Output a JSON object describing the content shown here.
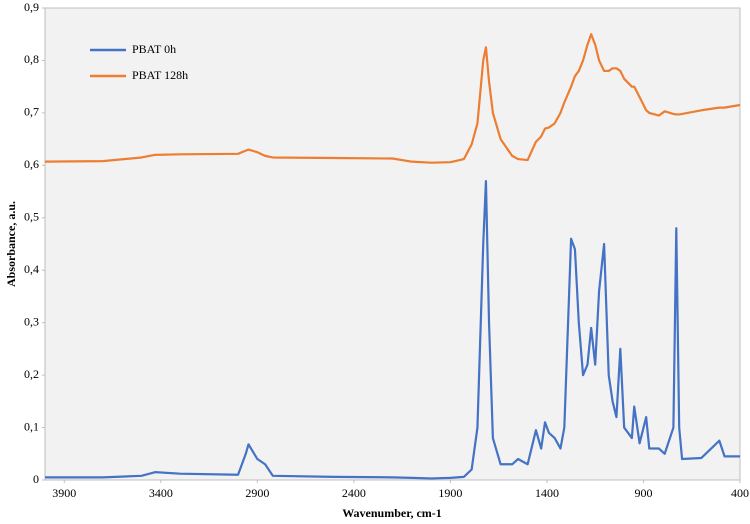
{
  "chart_data": {
    "type": "line",
    "x_label": "Wavenumber, cm-1",
    "y_label": "Absorbance, a.u.",
    "xlim": [
      4000,
      400
    ],
    "ylim": [
      0,
      0.9
    ],
    "xticks": [
      3900,
      3400,
      2900,
      2400,
      1900,
      1400,
      900,
      400
    ],
    "yticks": [
      0,
      {
        "value": 0.1,
        "label": "0,1"
      },
      {
        "value": 0.2,
        "label": "0,2"
      },
      {
        "value": 0.3,
        "label": "0,3"
      },
      {
        "value": 0.4,
        "label": "0,4"
      },
      {
        "value": 0.5,
        "label": "0,5"
      },
      {
        "value": 0.6,
        "label": "0,6"
      },
      {
        "value": 0.7,
        "label": "0,7"
      },
      {
        "value": 0.8,
        "label": "0,8"
      },
      {
        "value": 0.9,
        "label": "0,9"
      }
    ],
    "grid": false,
    "legend": "upper left",
    "x": [
      4000,
      3700,
      3500,
      3430,
      3300,
      3000,
      2960,
      2946,
      2900,
      2860,
      2820,
      2500,
      2200,
      2100,
      2000,
      1900,
      1830,
      1790,
      1760,
      1730,
      1716,
      1700,
      1680,
      1640,
      1580,
      1550,
      1500,
      1457,
      1430,
      1410,
      1390,
      1360,
      1330,
      1310,
      1275,
      1255,
      1235,
      1213,
      1190,
      1171,
      1150,
      1130,
      1104,
      1080,
      1060,
      1040,
      1020,
      1000,
      960,
      948,
      920,
      886,
      870,
      820,
      790,
      745,
      730,
      715,
      700,
      600,
      507,
      480,
      400
    ],
    "series": [
      {
        "name": "PBAT 0h",
        "color": "#4472c4",
        "values": [
          0.005,
          0.005,
          0.008,
          0.015,
          0.012,
          0.01,
          0.05,
          0.068,
          0.04,
          0.03,
          0.008,
          0.006,
          0.005,
          0.004,
          0.003,
          0.004,
          0.006,
          0.02,
          0.1,
          0.45,
          0.57,
          0.3,
          0.08,
          0.03,
          0.03,
          0.04,
          0.03,
          0.095,
          0.06,
          0.11,
          0.09,
          0.08,
          0.06,
          0.1,
          0.46,
          0.44,
          0.3,
          0.2,
          0.22,
          0.29,
          0.22,
          0.36,
          0.45,
          0.2,
          0.15,
          0.12,
          0.25,
          0.1,
          0.08,
          0.14,
          0.07,
          0.12,
          0.06,
          0.06,
          0.05,
          0.1,
          0.48,
          0.1,
          0.04,
          0.042,
          0.075,
          0.045,
          0.045
        ]
      },
      {
        "name": "PBAT 128h",
        "color": "#ed7d31",
        "values": [
          0.607,
          0.608,
          0.615,
          0.62,
          0.621,
          0.622,
          0.628,
          0.63,
          0.625,
          0.618,
          0.615,
          0.614,
          0.613,
          0.607,
          0.605,
          0.606,
          0.612,
          0.64,
          0.68,
          0.8,
          0.825,
          0.76,
          0.7,
          0.65,
          0.618,
          0.612,
          0.61,
          0.645,
          0.655,
          0.67,
          0.672,
          0.68,
          0.7,
          0.72,
          0.75,
          0.77,
          0.78,
          0.8,
          0.83,
          0.85,
          0.83,
          0.8,
          0.78,
          0.78,
          0.785,
          0.785,
          0.78,
          0.765,
          0.75,
          0.75,
          0.73,
          0.705,
          0.7,
          0.695,
          0.703,
          0.698,
          0.697,
          0.697,
          0.698,
          0.705,
          0.71,
          0.71,
          0.715
        ]
      }
    ]
  }
}
